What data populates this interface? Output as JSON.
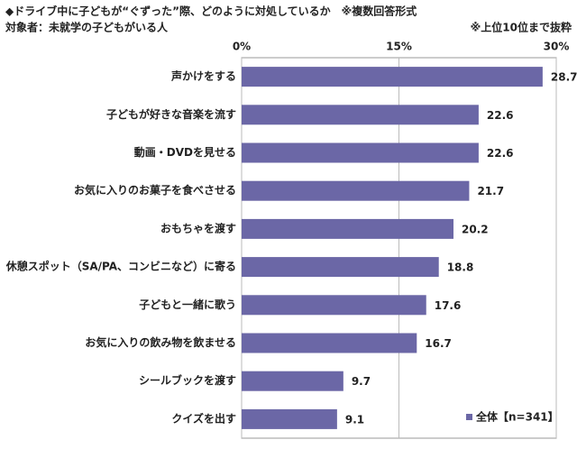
{
  "chart_data": {
    "type": "hbar",
    "title": "◆ドライブ中に子どもが“ぐずった”際、どのように対処しているか　※複数回答形式",
    "subtitle": "対象者：未就学の子どもがいる人",
    "note": "※上位10位まで抜粋",
    "categories": [
      "声かけをする",
      "子どもが好きな音楽を流す",
      "動画・DVDを見せる",
      "お気に入りのお菓子を食べさせる",
      "おもちゃを渡す",
      "休憩スポット（SA/PA、コンビニなど）に寄る",
      "子どもと一緒に歌う",
      "お気に入りの飲み物を飲ませる",
      "シールブックを渡す",
      "クイズを出す"
    ],
    "series": [
      {
        "name": "全体【n=341】",
        "color": "#6b67a6",
        "values": [
          28.7,
          22.6,
          22.6,
          21.7,
          20.2,
          18.8,
          17.6,
          16.7,
          9.7,
          9.1
        ]
      }
    ],
    "xlim": [
      0,
      30
    ],
    "xticks": [
      {
        "value": 0,
        "label": "0%"
      },
      {
        "value": 15,
        "label": "15%"
      },
      {
        "value": 30,
        "label": "30%"
      }
    ],
    "grid": true,
    "legend": "bottom-right"
  }
}
